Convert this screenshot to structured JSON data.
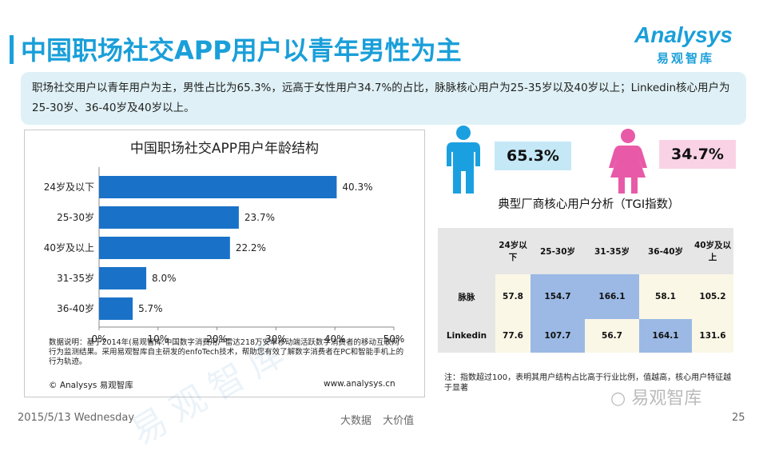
{
  "header": {
    "title": "中国职场社交APP用户以青年男性为主",
    "logo_text": "Analysys",
    "logo_subtitle": "易观智库"
  },
  "summary": {
    "text": "职场社交用户以青年用户为主，男性占比为65.3%，远高于女性用户34.7%的占比，脉脉核心用户为25-35岁以及40岁以上；Linkedin核心用户为25-30岁、36-40岁及40岁以上。"
  },
  "chart": {
    "watermark": "易观智库",
    "note": "数据说明：基于2014年(易观智库.中国数字消费用户雷达218万安卓移动端活跃数字消费者的移动互联网行为监测结果。采用易观智库自主研发的enfoTech技术，帮助您有效了解数字消费者在PC和智能手机上的行为轨迹。",
    "copyright": "© Analysys 易观智库",
    "url": "www.analysys.cn"
  },
  "chart_data": {
    "type": "bar",
    "orientation": "horizontal",
    "title": "中国职场社交APP用户年龄结构",
    "categories": [
      "24岁及以下",
      "25-30岁",
      "40岁及以上",
      "31-35岁",
      "36-40岁"
    ],
    "values": [
      40.3,
      23.7,
      22.2,
      8.0,
      5.7
    ],
    "value_labels": [
      "40.3%",
      "23.7%",
      "22.2%",
      "8.0%",
      "5.7%"
    ],
    "xlim": [
      0,
      50
    ],
    "xticks": [
      "0%",
      "10%",
      "20%",
      "30%",
      "40%",
      "50%"
    ],
    "bar_color": "#1a72c8"
  },
  "gender": {
    "male_pct": "65.3%",
    "female_pct": "34.7%",
    "male_color": "#1aa0e0",
    "female_color": "#e85aa8"
  },
  "tgi": {
    "title": "典型厂商核心用户分析（TGI指数）",
    "headers": [
      "24岁以下",
      "25-30岁",
      "31-35岁",
      "36-40岁",
      "40岁及以上"
    ],
    "rows": [
      {
        "name": "脉脉",
        "values": [
          "57.8",
          "154.7",
          "166.1",
          "58.1",
          "105.2"
        ]
      },
      {
        "name": "Linkedin",
        "values": [
          "77.6",
          "107.7",
          "56.7",
          "164.1",
          "131.6"
        ]
      }
    ],
    "note": "注：指数超过100，表明其用户结构占比高于行业比例，值越高，核心用户特征越于显著"
  },
  "wechat": "易观智库",
  "footer": {
    "date": "2015/5/13 Wednesday",
    "slogan": "大数据 大价值",
    "page": "25"
  }
}
